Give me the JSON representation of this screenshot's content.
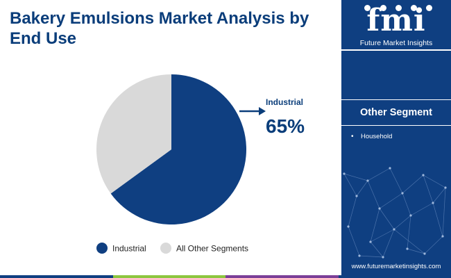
{
  "header": {
    "title": "Bakery Emulsions Market Analysis by End Use"
  },
  "chart_data": {
    "type": "pie",
    "categories": [
      "Industrial",
      "All Other Segments"
    ],
    "values": [
      65,
      35
    ],
    "colors": [
      "#0f3f81",
      "#d9d9d9"
    ],
    "callout": {
      "label": "Industrial",
      "value": "65%"
    },
    "legend": {
      "placement": "bottom",
      "entries": [
        "Industrial",
        "All Other Segments"
      ]
    }
  },
  "sidebar": {
    "logo_word": "fmi",
    "logo_text": "Future Market Insights",
    "heading": "Other Segment",
    "items": [
      "Household"
    ],
    "website": "www.futuremarketinsights.com"
  },
  "stripe_colors": [
    "#0f3f81",
    "#8cc63f",
    "#7b3f98",
    "#0f3f81"
  ]
}
